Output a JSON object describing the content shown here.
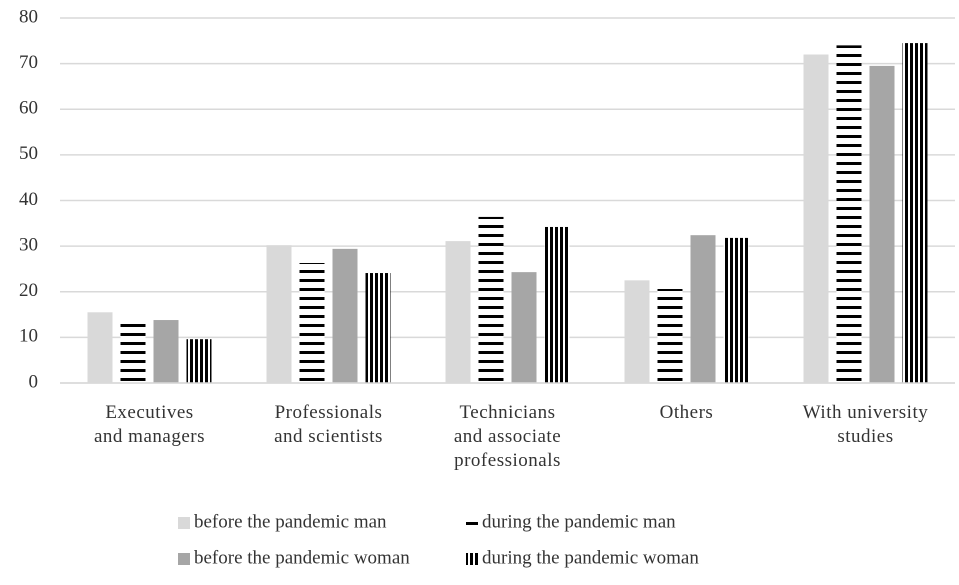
{
  "chart_data": {
    "type": "bar",
    "categories": [
      [
        "Executives",
        "and managers"
      ],
      [
        "Professionals",
        "and scientists"
      ],
      [
        "Technicians",
        "and associate",
        "professionals"
      ],
      [
        "Others"
      ],
      [
        "With university",
        "studies"
      ]
    ],
    "series": [
      {
        "name": "before the pandemic man",
        "color": "#d9d9d9",
        "pattern": "solid",
        "values": [
          15.5,
          30.2,
          31.1,
          22.5,
          72
        ]
      },
      {
        "name": "during the pandemic man",
        "color": "#000000",
        "pattern": "horizontal",
        "values": [
          13.6,
          26.3,
          36.4,
          20.6,
          74
        ]
      },
      {
        "name": "before the pandemic woman",
        "color": "#a6a6a6",
        "pattern": "solid",
        "values": [
          13.8,
          29.4,
          24.3,
          32.4,
          69.5
        ]
      },
      {
        "name": "during the pandemic woman",
        "color": "#000000",
        "pattern": "vertical",
        "values": [
          9.6,
          24.1,
          34.2,
          31.8,
          74.5
        ]
      }
    ],
    "ylim": [
      0,
      80
    ],
    "yticks": [
      0,
      10,
      20,
      30,
      40,
      50,
      60,
      70,
      80
    ],
    "grid": true,
    "legend": "bottom"
  }
}
